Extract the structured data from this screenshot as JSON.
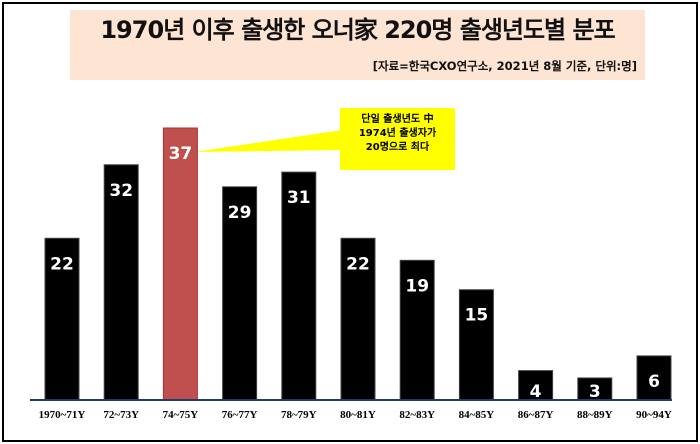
{
  "chart_data": {
    "type": "bar",
    "title": "1970년 이후 출생한 오너家 220명 출생년도별 분포",
    "subtitle": "[자료=한국CXO연구소,  2021년 8월 기준, 단위:명]",
    "categories": [
      "1970~71Y",
      "72~73Y",
      "74~75Y",
      "76~77Y",
      "78~79Y",
      "80~81Y",
      "82~83Y",
      "84~85Y",
      "86~87Y",
      "88~89Y",
      "90~94Y"
    ],
    "values": [
      22,
      32,
      37,
      29,
      31,
      22,
      19,
      15,
      4,
      3,
      6
    ],
    "highlight_index": 2,
    "colors": {
      "bar": "#000000",
      "highlight": "#c0504d",
      "baseline": "#1f3a6e",
      "callout": "#ffff00"
    },
    "annotation": [
      "단일 출생년도 中",
      "1974년 출생자가",
      "20명으로 최다"
    ],
    "ylim": [
      0,
      37
    ],
    "xlabel": "",
    "ylabel": ""
  }
}
